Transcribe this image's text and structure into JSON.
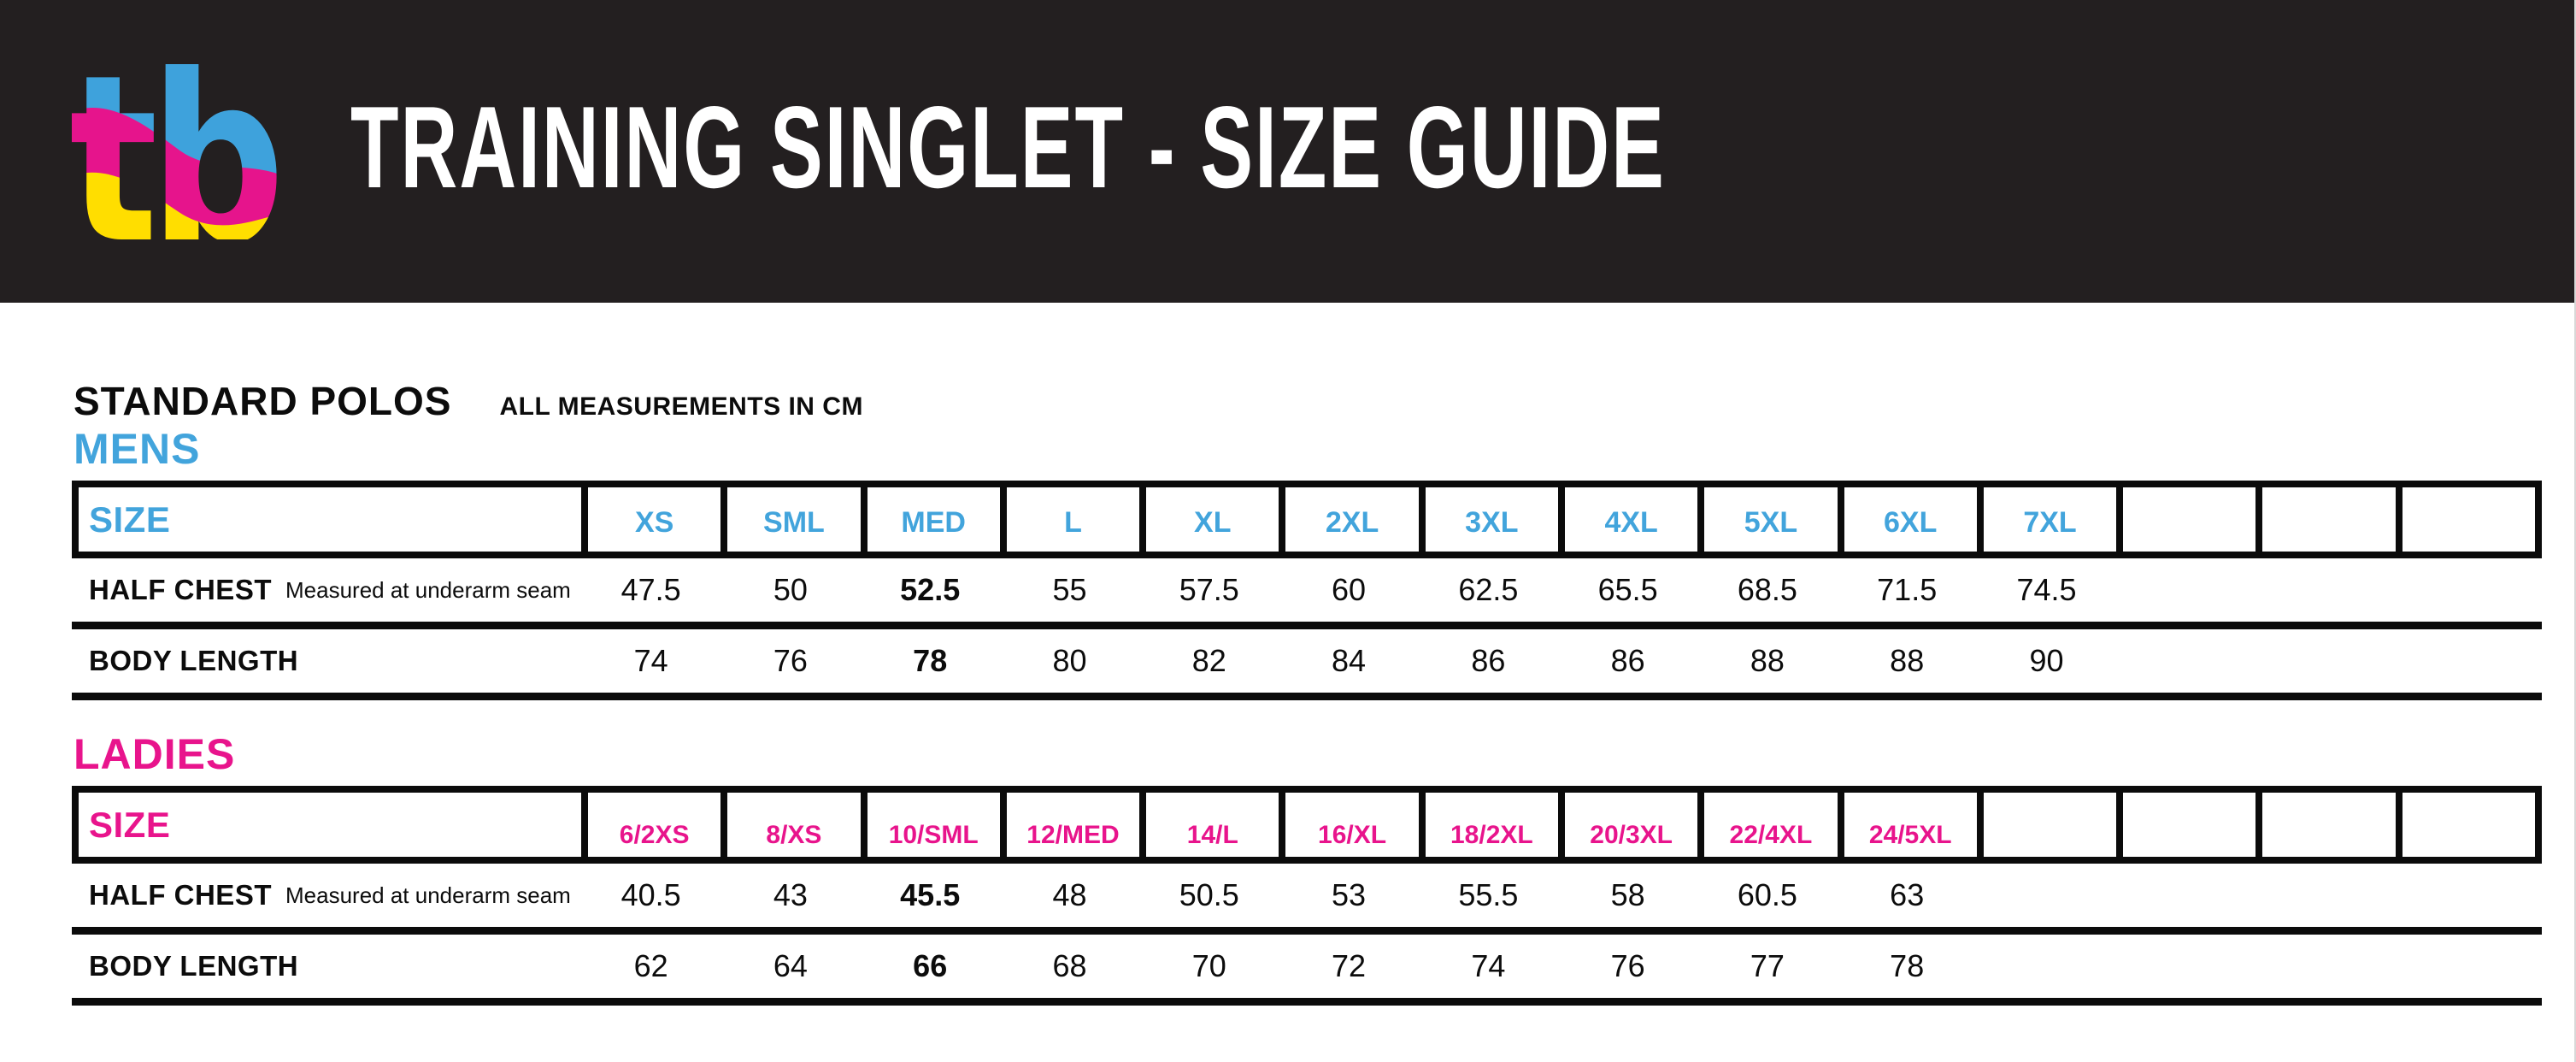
{
  "header": {
    "title": "TRAINING SINGLET - SIZE GUIDE",
    "logo_text": "tb",
    "banner_color": "#231f20",
    "logo_colors": {
      "blue": "#3ea2dc",
      "magenta": "#e6148c",
      "yellow": "#ffde00"
    }
  },
  "body": {
    "section_title": "STANDARD POLOS",
    "units_note": "ALL MEASUREMENTS IN CM"
  },
  "tables": {
    "mens": {
      "heading": "MENS",
      "accent": "#42a4dc",
      "size_label": "SIZE",
      "sizes": [
        "XS",
        "SML",
        "MED",
        "L",
        "XL",
        "2XL",
        "3XL",
        "4XL",
        "5XL",
        "6XL",
        "7XL",
        "",
        "",
        ""
      ],
      "rows": [
        {
          "label": "HALF CHEST",
          "note": "Measured at underarm seam",
          "bold_index": 2,
          "values": [
            "47.5",
            "50",
            "52.5",
            "55",
            "57.5",
            "60",
            "62.5",
            "65.5",
            "68.5",
            "71.5",
            "74.5",
            "",
            "",
            ""
          ]
        },
        {
          "label": "BODY LENGTH",
          "note": "",
          "bold_index": 2,
          "values": [
            "74",
            "76",
            "78",
            "80",
            "82",
            "84",
            "86",
            "86",
            "88",
            "88",
            "90",
            "",
            "",
            ""
          ]
        }
      ]
    },
    "ladies": {
      "heading": "LADIES",
      "accent": "#e8148c",
      "size_label": "SIZE",
      "sizes": [
        "6/2XS",
        "8/XS",
        "10/SML",
        "12/MED",
        "14/L",
        "16/XL",
        "18/2XL",
        "20/3XL",
        "22/4XL",
        "24/5XL",
        "",
        "",
        "",
        ""
      ],
      "rows": [
        {
          "label": "HALF CHEST",
          "note": "Measured at underarm seam",
          "bold_index": 2,
          "values": [
            "40.5",
            "43",
            "45.5",
            "48",
            "50.5",
            "53",
            "55.5",
            "58",
            "60.5",
            "63",
            "",
            "",
            "",
            ""
          ]
        },
        {
          "label": "BODY LENGTH",
          "note": "",
          "bold_index": 2,
          "values": [
            "62",
            "64",
            "66",
            "68",
            "70",
            "72",
            "74",
            "76",
            "77",
            "78",
            "",
            "",
            "",
            ""
          ]
        }
      ]
    }
  }
}
